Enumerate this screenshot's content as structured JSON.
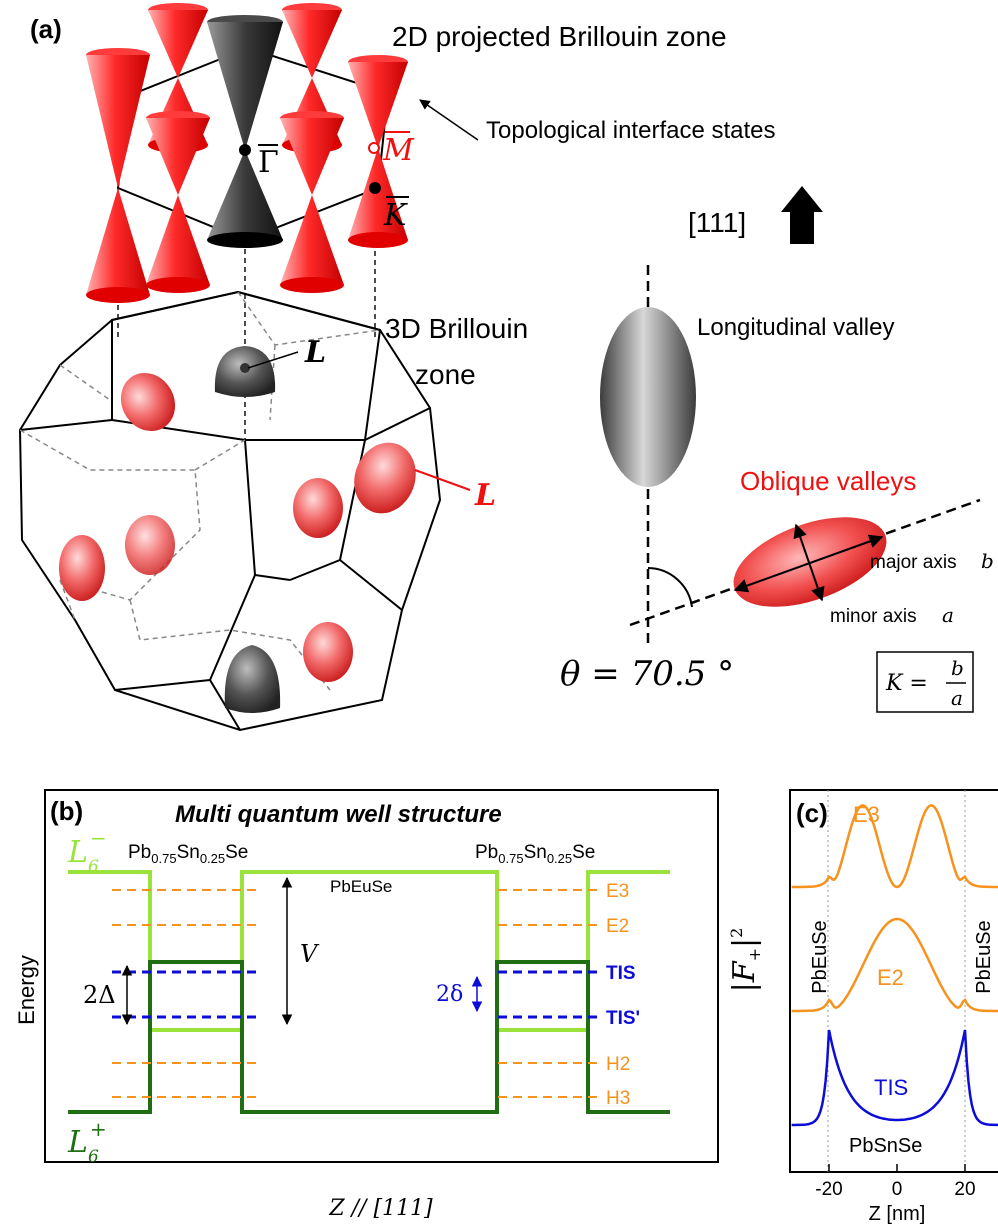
{
  "panel_a": {
    "label": "(a)",
    "title_2d": "2D projected Brillouin zone",
    "interface_states": "Topological interface states",
    "gamma": "Γ",
    "m_point": "M",
    "k_point": "K",
    "title_3d_line1": "3D Brillouin",
    "title_3d_line2": "zone",
    "l_point": "L",
    "direction": "[111]",
    "longitudinal": "Longitudinal valley",
    "oblique": "Oblique valleys",
    "major": "major axis",
    "major_sym": "b",
    "minor": "minor axis",
    "minor_sym": "a",
    "theta": "θ = 70.5 °",
    "k_eq": "K =",
    "k_num": "b",
    "k_den": "a"
  },
  "panel_b": {
    "label": "(b)",
    "title": "Multi quantum well structure",
    "l6_minus": "L",
    "l6_minus_sub": "6",
    "l6_minus_sup": "−",
    "l6_plus": "L",
    "l6_plus_sub": "6",
    "l6_plus_sup": "+",
    "well_left": "Pb",
    "well_left_s1": "0.75",
    "well_left_mid": "Sn",
    "well_left_s2": "0.25",
    "well_left_end": "Se",
    "barrier": "PbEuSe",
    "v": "V",
    "delta_big": "2Δ",
    "delta_small": "2δ",
    "levels": [
      "E3",
      "E2",
      "TIS",
      "TIS'",
      "H2",
      "H3"
    ],
    "ylabel": "Energy",
    "xlabel": "Z // [111]"
  },
  "panel_c": {
    "label": "(c)",
    "ylabel": "|F",
    "ylabel_sub": "+",
    "ylabel_sup": "2",
    "side_left": "PbEuSe",
    "side_right": "PbEuSe",
    "center": "PbSnSe",
    "curves": [
      "E3",
      "E2",
      "TIS"
    ],
    "xticks": [
      "-20",
      "0",
      "20"
    ],
    "xlabel": "Z [nm]"
  },
  "colors": {
    "red": "#ee1111",
    "black": "#000000",
    "light_green": "#99e33a",
    "dark_green": "#1f6e12",
    "orange": "#f6921e",
    "blue": "#0d0dd8",
    "grey": "#555555"
  }
}
